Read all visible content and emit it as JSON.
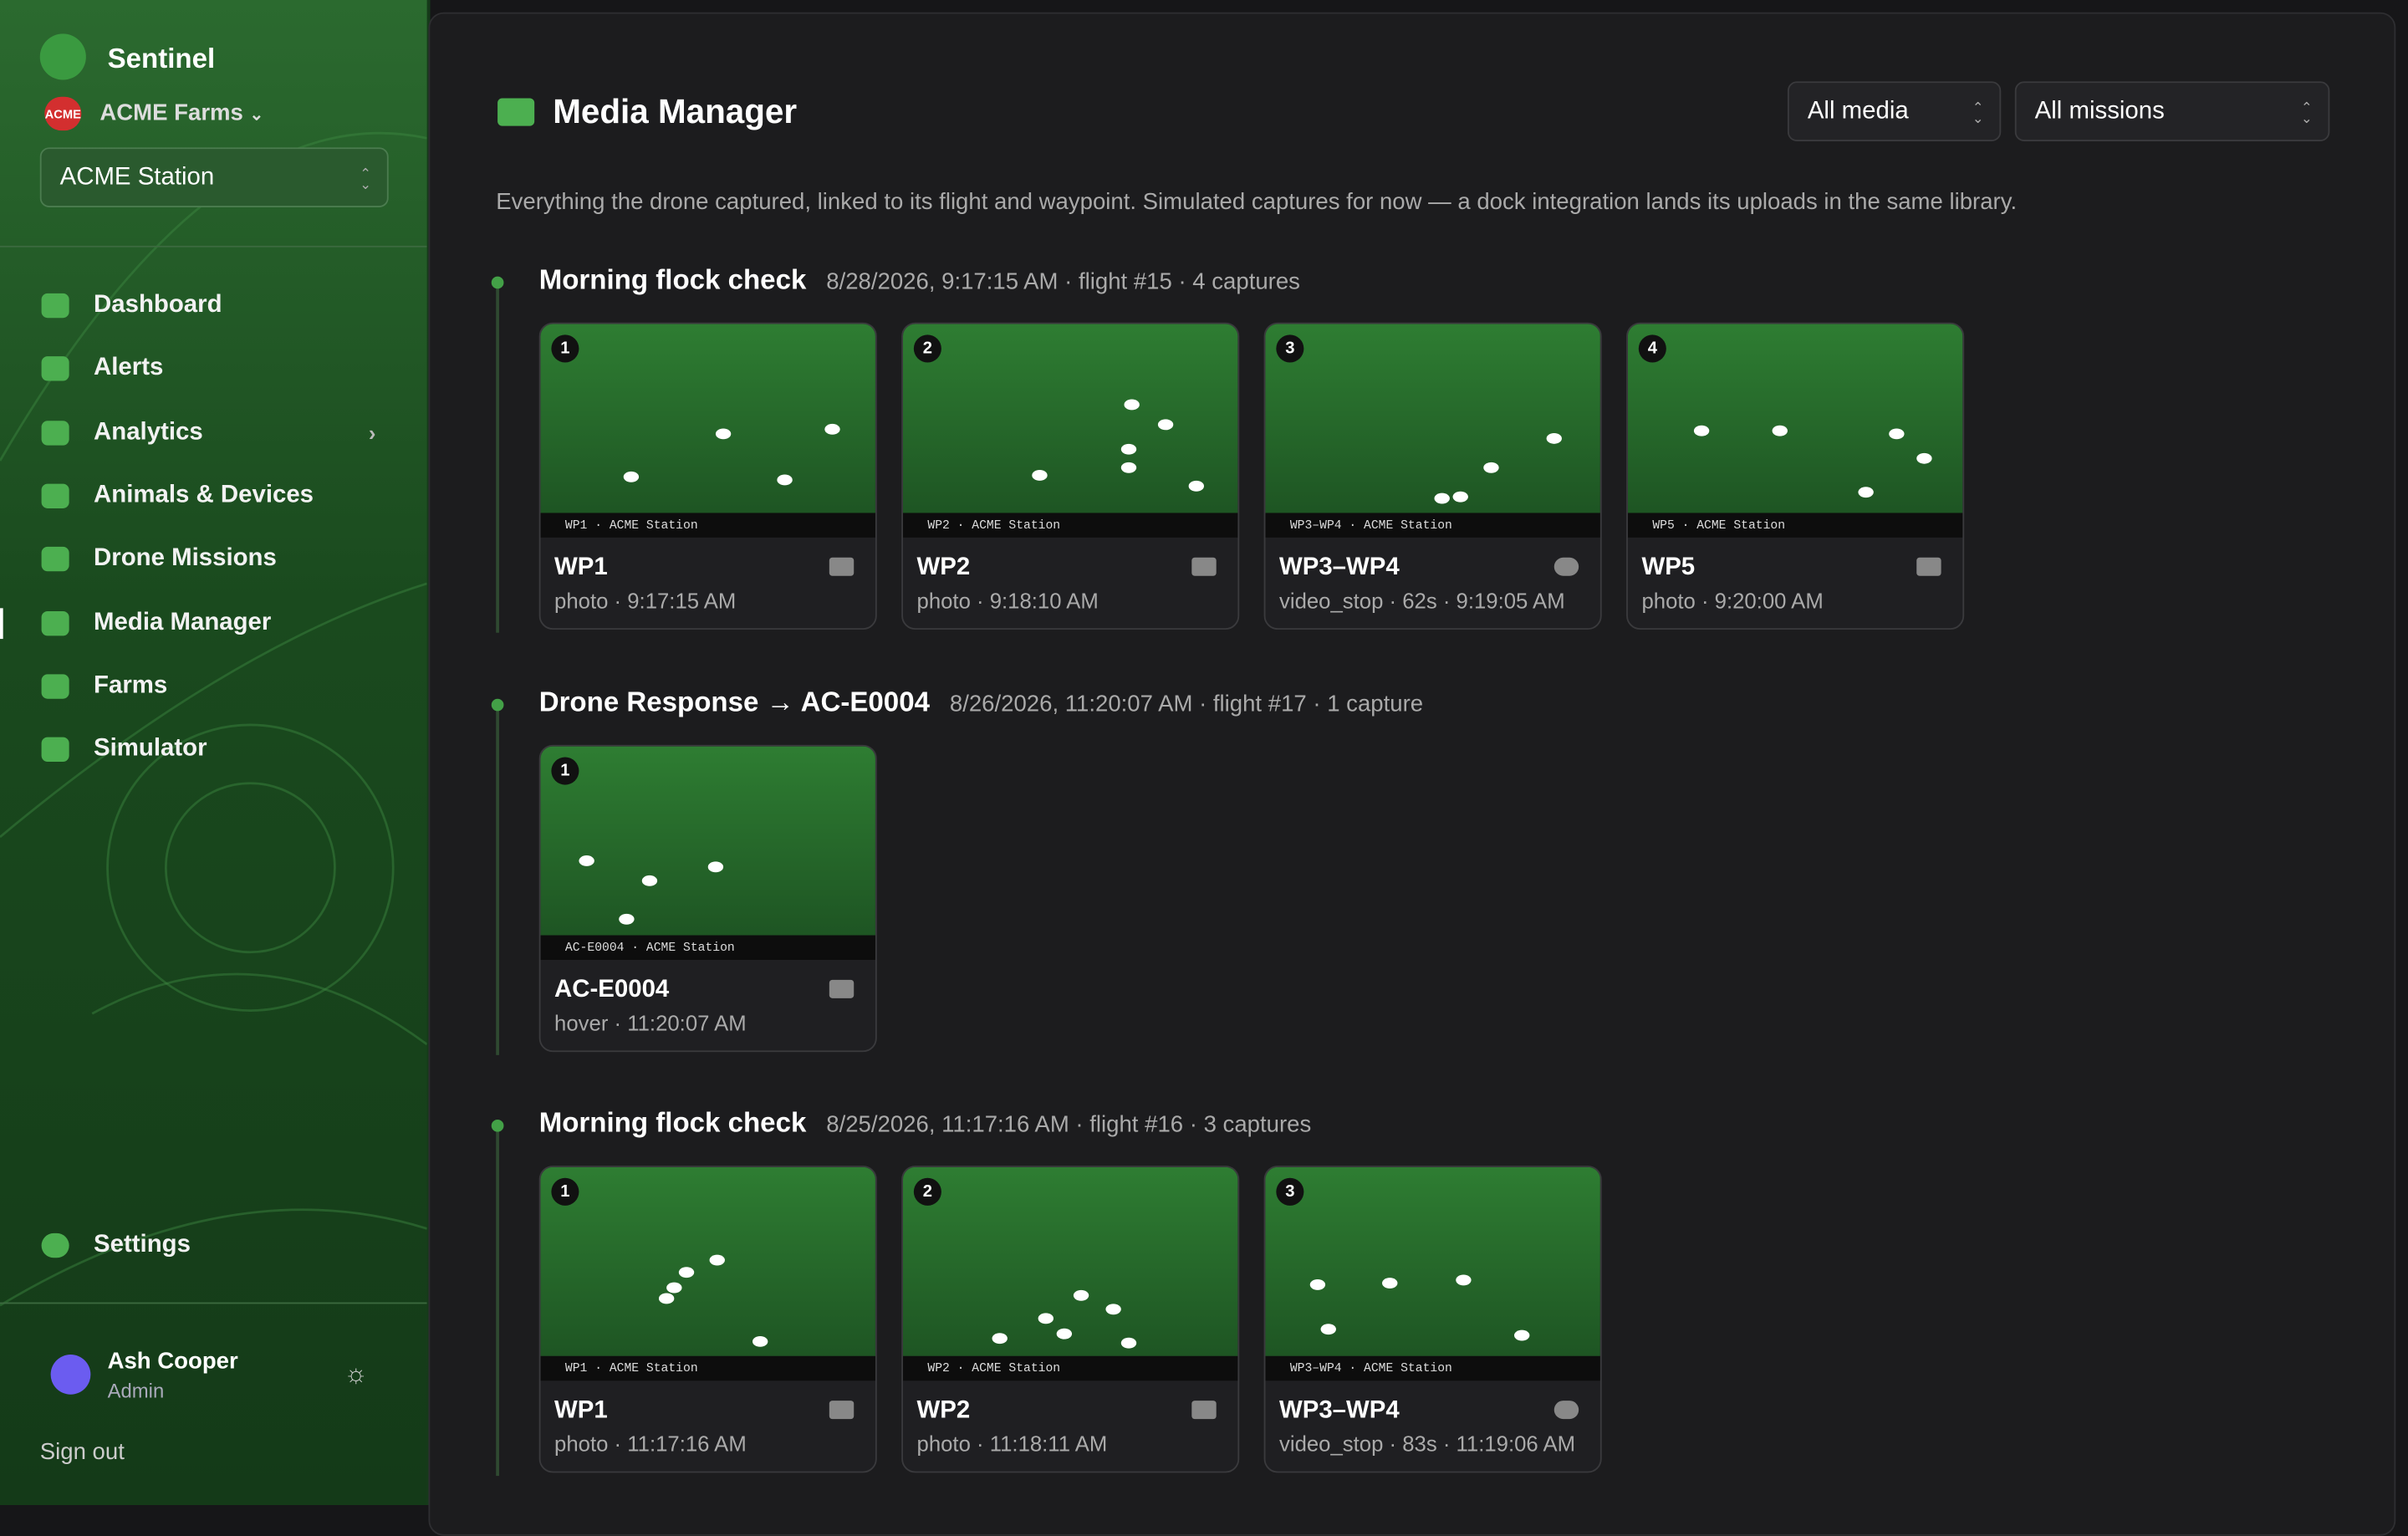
{
  "sidebar": {
    "brand": "Sentinel",
    "org_logo": "ACME",
    "org": "ACME Farms",
    "station": "ACME Station",
    "nav": [
      "Dashboard",
      "Alerts",
      "Analytics",
      "Animals & Devices",
      "Drone Missions",
      "Media Manager",
      "Farms",
      "Simulator"
    ],
    "active_nav": 5,
    "expandable_nav": [
      2
    ],
    "settings": "Settings",
    "user": {
      "name": "Ash Cooper",
      "role": "Admin"
    },
    "sign_out": "Sign out"
  },
  "header": {
    "title": "Media Manager",
    "filters": [
      "All media",
      "All missions"
    ],
    "description": "Everything the drone captured, linked to its flight and waypoint. Simulated captures for now — a dock integration lands its uploads in the same library."
  },
  "groups": [
    {
      "title": "Morning flock check",
      "meta": "8/28/2026, 9:17:15 AM · flight #15 · 4 captures",
      "cards": [
        {
          "number": 1,
          "caption": "WP1 · ACME Station",
          "title": "WP1",
          "meta": "photo · 9:17:15 AM"
        },
        {
          "number": 2,
          "caption": "WP2 · ACME Station",
          "title": "WP2",
          "meta": "photo · 9:18:10 AM"
        },
        {
          "number": 3,
          "caption": "WP3–WP4 · ACME Station",
          "title": "WP3–WP4",
          "meta": "video_stop · 62s · 9:19:05 AM"
        },
        {
          "number": 4,
          "caption": "WP5 · ACME Station",
          "title": "WP5",
          "meta": "photo · 9:20:00 AM"
        }
      ]
    },
    {
      "title": "Drone Response → AC-E0004",
      "meta": "8/26/2026, 11:20:07 AM · flight #17 · 1 capture",
      "cards": [
        {
          "number": 1,
          "caption": "AC-E0004 · ACME Station",
          "title": "AC-E0004",
          "meta": "hover · 11:20:07 AM"
        }
      ]
    },
    {
      "title": "Morning flock check",
      "meta": "8/25/2026, 11:17:16 AM · flight #16 · 3 captures",
      "cards": [
        {
          "number": 1,
          "caption": "WP1 · ACME Station",
          "title": "WP1",
          "meta": "photo · 11:17:16 AM"
        },
        {
          "number": 2,
          "caption": "WP2 · ACME Station",
          "title": "WP2",
          "meta": "photo · 11:18:11 AM"
        },
        {
          "number": 3,
          "caption": "WP3–WP4 · ACME Station",
          "title": "WP3–WP4",
          "meta": "video_stop · 83s · 11:19:06 AM"
        }
      ]
    }
  ]
}
